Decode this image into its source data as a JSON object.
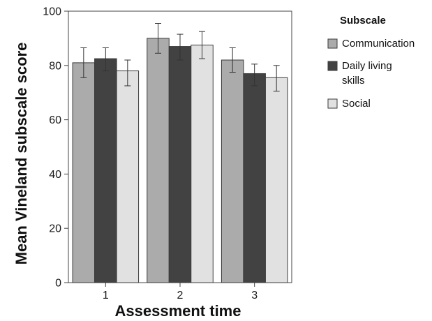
{
  "chart_data": {
    "type": "bar",
    "categories": [
      "1",
      "2",
      "3"
    ],
    "series": [
      {
        "name": "Communication",
        "values": [
          81,
          90,
          82
        ],
        "err_low": [
          75.5,
          84.5,
          77.5
        ],
        "err_high": [
          86.5,
          95.5,
          86.5
        ],
        "color": "#ababab"
      },
      {
        "name": "Daily living skills",
        "name_lines": [
          "Daily living",
          "skills"
        ],
        "values": [
          82.5,
          87,
          77
        ],
        "err_low": [
          78,
          82,
          72.5
        ],
        "err_high": [
          86.5,
          91.5,
          80.5
        ],
        "color": "#424242"
      },
      {
        "name": "Social",
        "values": [
          78,
          87.5,
          75.5
        ],
        "err_low": [
          72.5,
          82.5,
          70.5
        ],
        "err_high": [
          82,
          92.5,
          80
        ],
        "color": "#e1e1e1"
      }
    ],
    "xlabel": "Assessment time",
    "ylabel": "Mean Vineland subscale score",
    "ylim": [
      0,
      100
    ],
    "yticks": [
      0,
      20,
      40,
      60,
      80,
      100
    ],
    "legend_title": "Subscale",
    "legend_position": "right",
    "grid": false,
    "error_bars": true
  }
}
